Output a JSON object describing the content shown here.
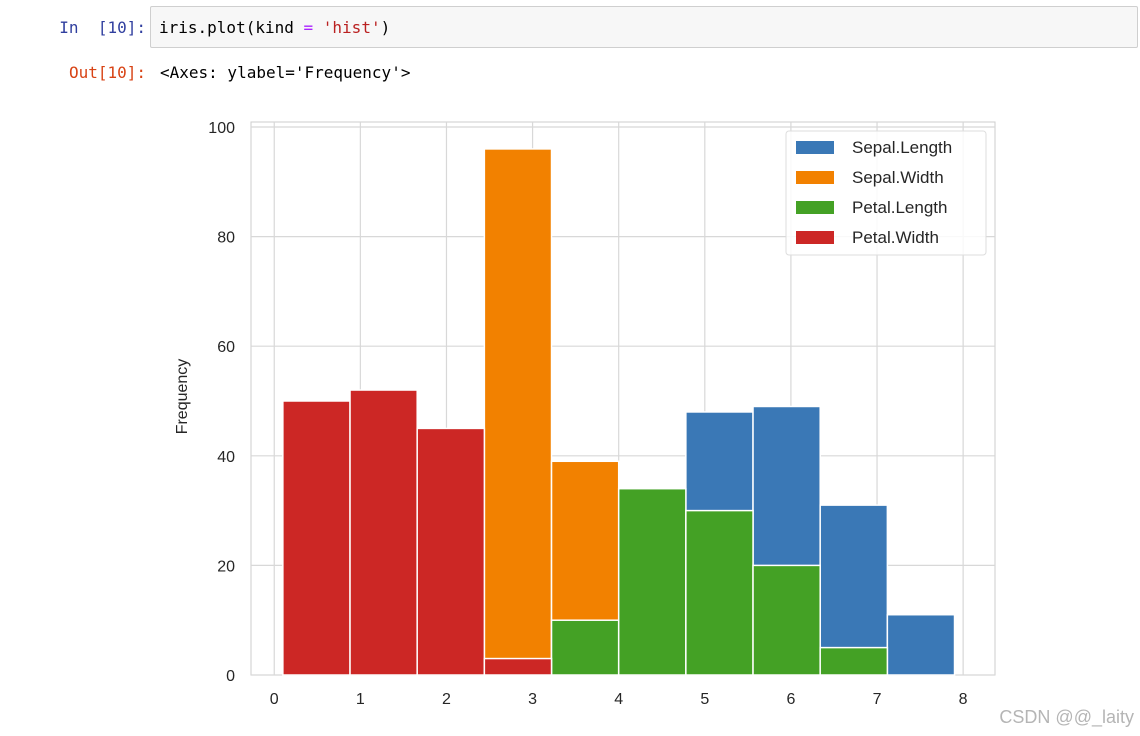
{
  "cell": {
    "in_prompt": "In  [10]:",
    "code_prefix": "iris.plot(kind ",
    "code_op": "=",
    "code_sp": " ",
    "code_str": "'hist'",
    "code_suffix": ")",
    "out_prompt": "Out[10]:",
    "output_repr": "<Axes: ylabel='Frequency'>"
  },
  "chart_data": {
    "type": "bar",
    "title": "",
    "xlabel": "",
    "ylabel": "Frequency",
    "xlim": [
      -0.27,
      8.37
    ],
    "ylim": [
      0,
      100
    ],
    "xticks": [
      "0",
      "1",
      "2",
      "3",
      "4",
      "5",
      "6",
      "7",
      "8"
    ],
    "yticks": [
      "0",
      "20",
      "40",
      "60",
      "80",
      "100"
    ],
    "bin_edges": [
      0.1,
      0.88,
      1.66,
      2.44,
      3.22,
      4.0,
      4.78,
      5.56,
      6.34,
      7.12,
      7.9
    ],
    "series": [
      {
        "name": "Sepal.Length",
        "color": "#3a78b6",
        "values": [
          0,
          0,
          0,
          0,
          0,
          0,
          48,
          49,
          31,
          11
        ]
      },
      {
        "name": "Sepal.Width",
        "color": "#f28100",
        "values": [
          0,
          0,
          0,
          96,
          39,
          0,
          0,
          0,
          0,
          0
        ]
      },
      {
        "name": "Petal.Length",
        "color": "#44a125",
        "values": [
          0,
          0,
          0,
          0,
          10,
          34,
          30,
          20,
          5,
          0
        ]
      },
      {
        "name": "Petal.Width",
        "color": "#cc2725",
        "values": [
          50,
          52,
          45,
          3,
          0,
          0,
          0,
          0,
          0,
          0
        ]
      }
    ],
    "grid": true,
    "legend": "top-right"
  },
  "watermark": "CSDN @@_laity"
}
